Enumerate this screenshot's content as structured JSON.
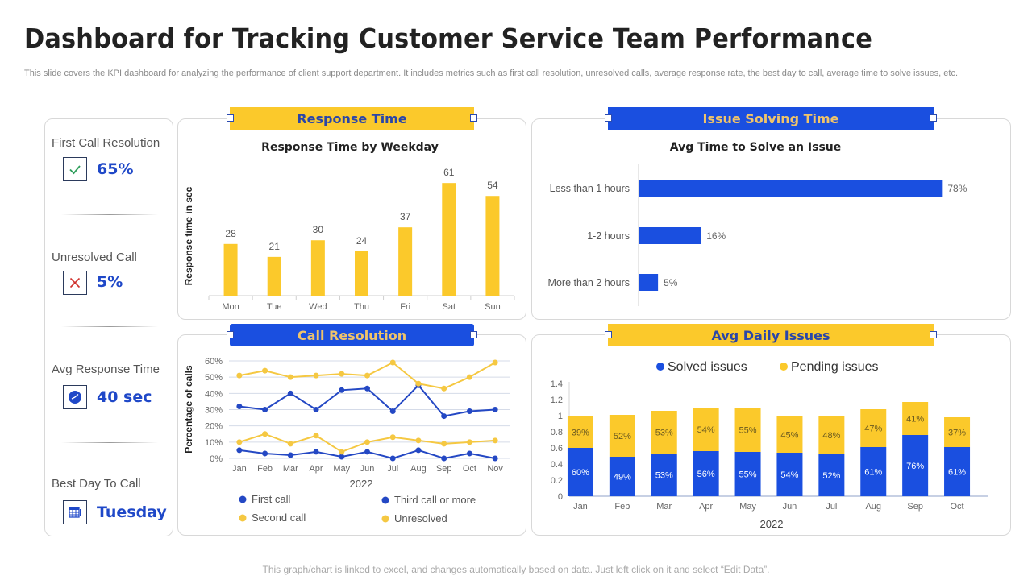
{
  "header": {
    "title": "Dashboard for Tracking Customer Service Team Performance",
    "subtitle": "This slide covers the KPI dashboard for analyzing the performance of client support department. It includes metrics such as first call resolution, unresolved calls, average response rate, the best day to call, average time to solve issues, etc."
  },
  "kpis": [
    {
      "label": "First Call Resolution",
      "value": "65%",
      "icon": "check-icon",
      "icon_color": "#2e9e5b"
    },
    {
      "label": "Unresolved  Call",
      "value": "5%",
      "icon": "x-icon",
      "icon_color": "#d0312d"
    },
    {
      "label": "Avg Response Time",
      "value": "40 sec",
      "icon": "clock-icon",
      "icon_color": "#1f48c8"
    },
    {
      "label": "Best Day To Call",
      "value": "Tuesday",
      "icon": "calendar-icon",
      "icon_color": "#1f48c8"
    }
  ],
  "sections": {
    "response_time": "Response Time",
    "issue_solving_time": "Issue Solving Time",
    "call_resolution": "Call Resolution",
    "avg_daily_issues": "Avg Daily Issues"
  },
  "colors": {
    "yellow": "#fbc92b",
    "blue": "#1a4fe0",
    "dark_blue": "#2448c4"
  },
  "footer": "This graph/chart is linked to excel, and changes automatically based on data. Just left click on it and select “Edit Data”.",
  "chart_data": [
    {
      "id": "response_time",
      "type": "bar",
      "title": "Response Time by Weekday",
      "xlabel": "",
      "ylabel": "Response time in sec",
      "categories": [
        "Mon",
        "Tue",
        "Wed",
        "Thu",
        "Fri",
        "Sat",
        "Sun"
      ],
      "values": [
        28,
        21,
        30,
        24,
        37,
        61,
        54
      ],
      "ylim": [
        0,
        65
      ],
      "grid": false,
      "data_labels": true
    },
    {
      "id": "issue_solving_time",
      "type": "bar",
      "orientation": "horizontal",
      "title": "Avg Time to Solve an Issue",
      "categories": [
        "Less  than 1 hours",
        "1-2 hours",
        "More than 2 hours"
      ],
      "values": [
        78,
        16,
        5
      ],
      "value_suffix": "%",
      "xlim": [
        0,
        80
      ],
      "grid": false,
      "data_labels": true
    },
    {
      "id": "call_resolution",
      "type": "line",
      "title": "",
      "xlabel": "2022",
      "ylabel": "Percentage  of calls",
      "categories": [
        "Jan",
        "Feb",
        "Mar",
        "Apr",
        "May",
        "Jun",
        "Jul",
        "Aug",
        "Sep",
        "Oct",
        "Nov"
      ],
      "yticks": [
        "0%",
        "10%",
        "20%",
        "30%",
        "40%",
        "50%",
        "60%"
      ],
      "ylim": [
        0,
        60
      ],
      "grid": true,
      "legend_position": "bottom",
      "series": [
        {
          "name": "First call",
          "color": "#2448c4",
          "values": [
            32,
            30,
            40,
            30,
            42,
            43,
            29,
            45,
            26,
            29,
            30
          ]
        },
        {
          "name": "Second call",
          "color": "#f5c842",
          "values": [
            51,
            54,
            50,
            51,
            52,
            51,
            59,
            46,
            43,
            50,
            59
          ]
        },
        {
          "name": "Third call or more",
          "color": "#2448c4",
          "values": [
            5,
            3,
            2,
            4,
            1,
            4,
            0,
            5,
            0,
            3,
            0
          ]
        },
        {
          "name": "Unresolved",
          "color": "#f5c842",
          "values": [
            10,
            15,
            9,
            14,
            4,
            10,
            13,
            11,
            9,
            10,
            11
          ]
        }
      ]
    },
    {
      "id": "avg_daily_issues",
      "type": "bar",
      "stacked": true,
      "title": "",
      "xlabel": "2022",
      "ylabel": "",
      "categories": [
        "Jan",
        "Feb",
        "Mar",
        "Apr",
        "May",
        "Jun",
        "Jul",
        "Aug",
        "Sep",
        "Oct"
      ],
      "yticks": [
        "0",
        "0.2",
        "0.4",
        "0.6",
        "0.8",
        "1",
        "1.2",
        "1.4"
      ],
      "ylim": [
        0,
        1.4
      ],
      "grid": false,
      "legend_position": "top",
      "series": [
        {
          "name": "Solved issues",
          "color": "#1a4fe0",
          "values": [
            0.6,
            0.49,
            0.53,
            0.56,
            0.55,
            0.54,
            0.52,
            0.61,
            0.76,
            0.61
          ],
          "labels": [
            "60%",
            "49%",
            "53%",
            "56%",
            "55%",
            "54%",
            "52%",
            "61%",
            "76%",
            "61%"
          ]
        },
        {
          "name": "Pending issues",
          "color": "#fbc92b",
          "values": [
            0.39,
            0.52,
            0.53,
            0.54,
            0.55,
            0.45,
            0.48,
            0.47,
            0.41,
            0.37
          ],
          "labels": [
            "39%",
            "52%",
            "53%",
            "54%",
            "55%",
            "45%",
            "48%",
            "47%",
            "41%",
            "37%"
          ]
        }
      ]
    }
  ]
}
